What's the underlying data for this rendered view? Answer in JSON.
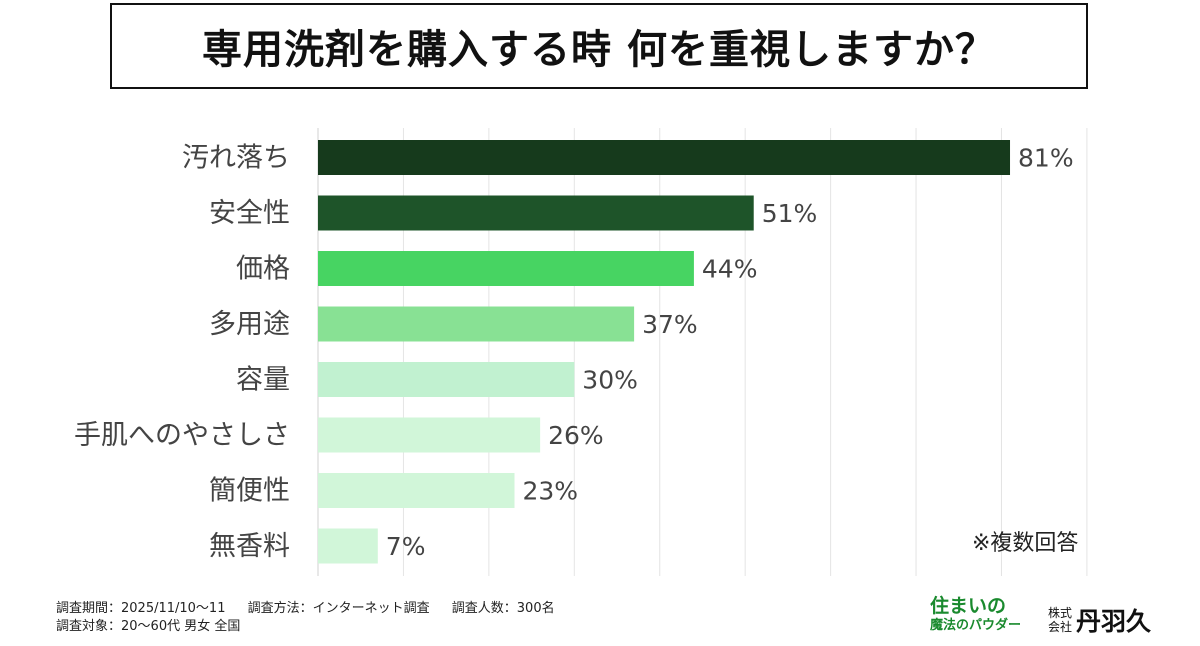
{
  "title": "専用洗剤を購入する時 何を重視しますか？",
  "note": "※複数回答",
  "footer": {
    "period": "調査期間：2025/11/10〜11",
    "method": "調査方法：インターネット調査",
    "count": "調査人数：300名",
    "target": "調査対象：20〜60代 男女 全国"
  },
  "logos": {
    "brand_line1": "住まいの",
    "brand_line2": "魔法のパウダー",
    "company_prefix": "株式会社",
    "company_name": "丹羽久"
  },
  "chart_data": {
    "type": "bar",
    "orientation": "horizontal",
    "categories": [
      "汚れ落ち",
      "安全性",
      "価格",
      "多用途",
      "容量",
      "手肌へのやさしさ",
      "簡便性",
      "無香料"
    ],
    "values": [
      81,
      51,
      44,
      37,
      30,
      26,
      23,
      7
    ],
    "value_labels": [
      "81%",
      "51%",
      "44%",
      "37%",
      "30%",
      "26%",
      "23%",
      "7%"
    ],
    "colors": [
      "#163a1c",
      "#1e5429",
      "#47d462",
      "#88e194",
      "#c1f1d0",
      "#d1f6d9",
      "#d1f6d9",
      "#d1f6d9"
    ],
    "xlim": [
      0,
      92
    ],
    "grid": true
  }
}
